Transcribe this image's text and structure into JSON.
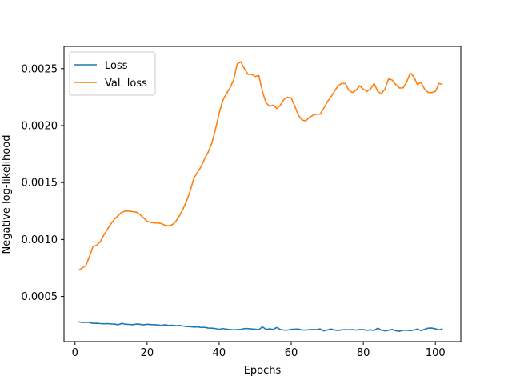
{
  "chart_data": {
    "type": "line",
    "title": "",
    "xlabel": "Epochs",
    "ylabel": "Negative log-likelihood",
    "xlim": [
      -3.05,
      107.05
    ],
    "ylim": [
      0.000104,
      0.002695
    ],
    "xticks": [
      0,
      20,
      40,
      60,
      80,
      100
    ],
    "yticks": [
      0.0005,
      0.001,
      0.0015,
      0.002,
      0.0025
    ],
    "ytick_labels": [
      "0.0005",
      "0.0010",
      "0.0015",
      "0.0020",
      "0.0025"
    ],
    "grid": false,
    "legend_position": "upper-left",
    "series": [
      {
        "name": "Loss",
        "color": "#1f77b4",
        "values": [
          [
            1,
            0.000278
          ],
          [
            2,
            0.000272
          ],
          [
            3,
            0.000274
          ],
          [
            4,
            0.000272
          ],
          [
            5,
            0.000264
          ],
          [
            6,
            0.000265
          ],
          [
            7,
            0.000262
          ],
          [
            8,
            0.000261
          ],
          [
            9,
            0.000262
          ],
          [
            10,
            0.000259
          ],
          [
            11,
            0.000258
          ],
          [
            12,
            0.000252
          ],
          [
            13,
            0.000264
          ],
          [
            14,
            0.000256
          ],
          [
            15,
            0.000255
          ],
          [
            16,
            0.000252
          ],
          [
            17,
            0.000258
          ],
          [
            18,
            0.000256
          ],
          [
            19,
            0.000251
          ],
          [
            20,
            0.000256
          ],
          [
            21,
            0.000254
          ],
          [
            22,
            0.000252
          ],
          [
            23,
            0.00025
          ],
          [
            24,
            0.000246
          ],
          [
            25,
            0.000252
          ],
          [
            26,
            0.000246
          ],
          [
            27,
            0.000248
          ],
          [
            28,
            0.000243
          ],
          [
            29,
            0.000246
          ],
          [
            30,
            0.000241
          ],
          [
            31,
            0.000236
          ],
          [
            32,
            0.000235
          ],
          [
            33,
            0.000232
          ],
          [
            34,
            0.000233
          ],
          [
            35,
            0.000228
          ],
          [
            36,
            0.000229
          ],
          [
            37,
            0.000223
          ],
          [
            38,
            0.000222
          ],
          [
            39,
            0.000218
          ],
          [
            40,
            0.000212
          ],
          [
            41,
            0.000219
          ],
          [
            42,
            0.000213
          ],
          [
            43,
            0.00021
          ],
          [
            44,
            0.000207
          ],
          [
            45,
            0.000209
          ],
          [
            46,
            0.000211
          ],
          [
            47,
            0.000218
          ],
          [
            48,
            0.000219
          ],
          [
            49,
            0.000215
          ],
          [
            50,
            0.000213
          ],
          [
            51,
            0.000208
          ],
          [
            52,
            0.000234
          ],
          [
            53,
            0.000211
          ],
          [
            54,
            0.000216
          ],
          [
            55,
            0.000211
          ],
          [
            56,
            0.000228
          ],
          [
            57,
            0.00021
          ],
          [
            58,
            0.000205
          ],
          [
            59,
            0.000205
          ],
          [
            60,
            0.000212
          ],
          [
            61,
            0.000213
          ],
          [
            62,
            0.000214
          ],
          [
            63,
            0.000206
          ],
          [
            64,
            0.000205
          ],
          [
            65,
            0.000209
          ],
          [
            66,
            0.00021
          ],
          [
            67,
            0.000209
          ],
          [
            68,
            0.000215
          ],
          [
            69,
            0.000198
          ],
          [
            70,
            0.000206
          ],
          [
            71,
            0.000214
          ],
          [
            72,
            0.000206
          ],
          [
            73,
            0.000201
          ],
          [
            74,
            0.000207
          ],
          [
            75,
            0.000209
          ],
          [
            76,
            0.000207
          ],
          [
            77,
            0.000209
          ],
          [
            78,
            0.000205
          ],
          [
            79,
            0.00021
          ],
          [
            80,
            0.000209
          ],
          [
            81,
            0.000203
          ],
          [
            82,
            0.000207
          ],
          [
            83,
            0.000202
          ],
          [
            84,
            0.000222
          ],
          [
            85,
            0.000205
          ],
          [
            86,
            0.000198
          ],
          [
            87,
            0.000203
          ],
          [
            88,
            0.000211
          ],
          [
            89,
            0.000199
          ],
          [
            90,
            0.000195
          ],
          [
            91,
            0.000203
          ],
          [
            92,
            0.000204
          ],
          [
            93,
            0.0002
          ],
          [
            94,
            0.000205
          ],
          [
            95,
            0.000214
          ],
          [
            96,
            0.0002
          ],
          [
            97,
            0.000212
          ],
          [
            98,
            0.000222
          ],
          [
            99,
            0.000223
          ],
          [
            100,
            0.000216
          ],
          [
            101,
            0.000207
          ],
          [
            102,
            0.000217
          ]
        ]
      },
      {
        "name": "Val. loss",
        "color": "#ff7f0e",
        "values": [
          [
            1,
            0.00073
          ],
          [
            2,
            0.00075
          ],
          [
            3,
            0.00077
          ],
          [
            4,
            0.00085
          ],
          [
            5,
            0.00094
          ],
          [
            6,
            0.00095
          ],
          [
            7,
            0.00098
          ],
          [
            8,
            0.00104
          ],
          [
            9,
            0.00109
          ],
          [
            10,
            0.00114
          ],
          [
            11,
            0.00118
          ],
          [
            12,
            0.00121
          ],
          [
            13,
            0.00124
          ],
          [
            14,
            0.00125
          ],
          [
            15,
            0.00125
          ],
          [
            16,
            0.001245
          ],
          [
            17,
            0.00124
          ],
          [
            18,
            0.00122
          ],
          [
            19,
            0.00119
          ],
          [
            20,
            0.00116
          ],
          [
            21,
            0.00115
          ],
          [
            22,
            0.001145
          ],
          [
            23,
            0.001145
          ],
          [
            24,
            0.00114
          ],
          [
            25,
            0.001125
          ],
          [
            26,
            0.00112
          ],
          [
            27,
            0.00113
          ],
          [
            28,
            0.00116
          ],
          [
            29,
            0.00121
          ],
          [
            30,
            0.00127
          ],
          [
            31,
            0.00134
          ],
          [
            32,
            0.00143
          ],
          [
            33,
            0.00154
          ],
          [
            34,
            0.00159
          ],
          [
            35,
            0.00164
          ],
          [
            36,
            0.00171
          ],
          [
            37,
            0.00177
          ],
          [
            38,
            0.00185
          ],
          [
            39,
            0.00197
          ],
          [
            40,
            0.00211
          ],
          [
            41,
            0.00222
          ],
          [
            42,
            0.00228
          ],
          [
            43,
            0.00233
          ],
          [
            44,
            0.0024
          ],
          [
            45,
            0.00254
          ],
          [
            46,
            0.00256
          ],
          [
            47,
            0.0025
          ],
          [
            48,
            0.00245
          ],
          [
            49,
            0.00245
          ],
          [
            50,
            0.00243
          ],
          [
            51,
            0.00244
          ],
          [
            52,
            0.0023
          ],
          [
            53,
            0.0022
          ],
          [
            54,
            0.00217
          ],
          [
            55,
            0.00218
          ],
          [
            56,
            0.00215
          ],
          [
            57,
            0.00218
          ],
          [
            58,
            0.00223
          ],
          [
            59,
            0.00225
          ],
          [
            60,
            0.00224
          ],
          [
            61,
            0.00217
          ],
          [
            62,
            0.00209
          ],
          [
            63,
            0.00205
          ],
          [
            64,
            0.00204
          ],
          [
            65,
            0.00207
          ],
          [
            66,
            0.00209
          ],
          [
            67,
            0.0021
          ],
          [
            68,
            0.0021
          ],
          [
            69,
            0.00215
          ],
          [
            70,
            0.00221
          ],
          [
            71,
            0.00225
          ],
          [
            72,
            0.0023
          ],
          [
            73,
            0.00235
          ],
          [
            74,
            0.00237
          ],
          [
            75,
            0.00237
          ],
          [
            76,
            0.00231
          ],
          [
            77,
            0.00229
          ],
          [
            78,
            0.00231
          ],
          [
            79,
            0.00235
          ],
          [
            80,
            0.00232
          ],
          [
            81,
            0.0023
          ],
          [
            82,
            0.00232
          ],
          [
            83,
            0.00237
          ],
          [
            84,
            0.0023
          ],
          [
            85,
            0.00228
          ],
          [
            86,
            0.00232
          ],
          [
            87,
            0.00241
          ],
          [
            88,
            0.0024
          ],
          [
            89,
            0.00236
          ],
          [
            90,
            0.00233
          ],
          [
            91,
            0.00233
          ],
          [
            92,
            0.00238
          ],
          [
            93,
            0.00246
          ],
          [
            94,
            0.00243
          ],
          [
            95,
            0.00236
          ],
          [
            96,
            0.00238
          ],
          [
            97,
            0.00232
          ],
          [
            98,
            0.00229
          ],
          [
            99,
            0.00229
          ],
          [
            100,
            0.0023
          ],
          [
            101,
            0.00237
          ],
          [
            102,
            0.00236
          ]
        ]
      }
    ]
  }
}
